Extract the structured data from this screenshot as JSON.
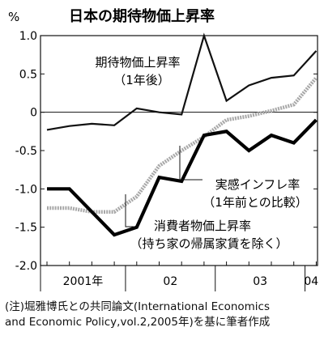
{
  "chart_data": {
    "type": "line",
    "title": "日本の期待物価上昇率",
    "y_unit": "%",
    "ylim": [
      -2.0,
      1.0
    ],
    "y_ticks": [
      1.0,
      0.5,
      0,
      -0.5,
      -1.0,
      -1.5,
      -2.0
    ],
    "y_tick_labels": [
      "1.0",
      "0.5",
      "0",
      "-0.5",
      "-1.0",
      "-1.5",
      "-2.0"
    ],
    "x_period_labels": [
      "2001年",
      "02",
      "03",
      "04"
    ],
    "grid": false,
    "zero_line": true,
    "x": [
      "2001-Q1",
      "2001-Q2",
      "2001-Q3",
      "2001-Q4",
      "2002-Q1",
      "2002-Q2",
      "2002-Q3",
      "2002-Q4",
      "2003-Q1",
      "2003-Q2",
      "2003-Q3",
      "2003-Q4",
      "2004-Q1"
    ],
    "series": [
      {
        "name": "期待物価上昇率（1年後）",
        "label_lines": [
          "期待物価上昇率",
          "（1年後）"
        ],
        "style": "thin-black",
        "color": "#111111",
        "values": [
          -0.23,
          -0.18,
          -0.15,
          -0.17,
          0.05,
          0.0,
          -0.03,
          1.0,
          0.15,
          0.35,
          0.45,
          0.48,
          0.8
        ]
      },
      {
        "name": "実感インフレ率（1年前との比較）",
        "label_lines": [
          "実感インフレ率",
          "（1年前との比較）"
        ],
        "style": "thick-black",
        "color": "#000000",
        "values": [
          -1.0,
          -1.0,
          -1.3,
          -1.6,
          -1.5,
          -0.85,
          -0.9,
          -0.3,
          -0.25,
          -0.5,
          -0.3,
          -0.4,
          -0.1
        ]
      },
      {
        "name": "消費者物価上昇率（持ち家の帰属家賃を除く）",
        "label_lines": [
          "消費者物価上昇率",
          "（持ち家の帰属家賃を除く）"
        ],
        "style": "gray-dotted",
        "color": "#a8a8a8",
        "values": [
          -1.25,
          -1.25,
          -1.3,
          -1.3,
          -1.1,
          -0.7,
          -0.5,
          -0.32,
          -0.1,
          -0.05,
          0.02,
          0.1,
          0.45
        ]
      }
    ]
  },
  "note": {
    "line1": "(注)堀雅博氏との共同論文(International Economics",
    "line2": "and Economic Policy,vol.2,2005年)を基に筆者作成"
  }
}
